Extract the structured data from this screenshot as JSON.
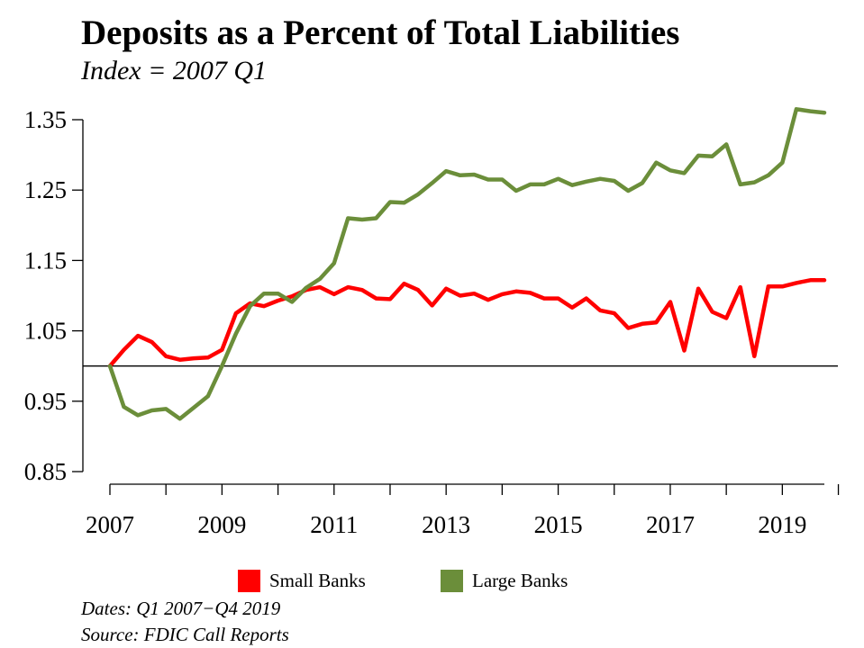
{
  "header": {
    "title": "Deposits as a Percent of Total Liabilities",
    "subtitle": "Index = 2007 Q1"
  },
  "footer": {
    "dates_note": "Dates: Q1 2007−Q4 2019",
    "source_note": "Source: FDIC Call Reports"
  },
  "colors": {
    "small_banks": "#ff0000",
    "large_banks": "#6b8e3a",
    "reference_line": "#000000"
  },
  "chart_data": {
    "type": "line",
    "title": "Deposits as a Percent of Total Liabilities",
    "subtitle": "Index = 2007 Q1",
    "xlabel": "",
    "ylabel": "",
    "x_ticks": [
      "2007",
      "2009",
      "2011",
      "2013",
      "2015",
      "2017",
      "2019"
    ],
    "y_ticks": [
      "0.85",
      "0.95",
      "1.05",
      "1.15",
      "1.25",
      "1.35"
    ],
    "ylim": [
      0.85,
      1.35
    ],
    "xlim": [
      "2007 Q1",
      "2019 Q4"
    ],
    "reference_line": 1.0,
    "grid": false,
    "legend_position": "bottom",
    "x": [
      "2007 Q1",
      "2007 Q2",
      "2007 Q3",
      "2007 Q4",
      "2008 Q1",
      "2008 Q2",
      "2008 Q3",
      "2008 Q4",
      "2009 Q1",
      "2009 Q2",
      "2009 Q3",
      "2009 Q4",
      "2010 Q1",
      "2010 Q2",
      "2010 Q3",
      "2010 Q4",
      "2011 Q1",
      "2011 Q2",
      "2011 Q3",
      "2011 Q4",
      "2012 Q1",
      "2012 Q2",
      "2012 Q3",
      "2012 Q4",
      "2013 Q1",
      "2013 Q2",
      "2013 Q3",
      "2013 Q4",
      "2014 Q1",
      "2014 Q2",
      "2014 Q3",
      "2014 Q4",
      "2015 Q1",
      "2015 Q2",
      "2015 Q3",
      "2015 Q4",
      "2016 Q1",
      "2016 Q2",
      "2016 Q3",
      "2016 Q4",
      "2017 Q1",
      "2017 Q2",
      "2017 Q3",
      "2017 Q4",
      "2018 Q1",
      "2018 Q2",
      "2018 Q3",
      "2018 Q4",
      "2019 Q1",
      "2019 Q2",
      "2019 Q3",
      "2019 Q4"
    ],
    "series": [
      {
        "name": "Small Banks",
        "color": "#ff0000",
        "values": [
          1.0,
          1.023,
          1.043,
          1.034,
          1.014,
          1.009,
          1.011,
          1.012,
          1.023,
          1.075,
          1.089,
          1.085,
          1.093,
          1.099,
          1.108,
          1.112,
          1.102,
          1.112,
          1.108,
          1.096,
          1.095,
          1.117,
          1.108,
          1.086,
          1.11,
          1.1,
          1.103,
          1.094,
          1.102,
          1.106,
          1.104,
          1.096,
          1.096,
          1.083,
          1.096,
          1.079,
          1.075,
          1.054,
          1.06,
          1.062,
          1.091,
          1.022,
          1.11,
          1.077,
          1.068,
          1.112,
          1.014,
          1.113,
          1.113,
          1.118,
          1.122,
          1.122
        ]
      },
      {
        "name": "Large Banks",
        "color": "#6b8e3a",
        "values": [
          1.0,
          0.942,
          0.93,
          0.937,
          0.939,
          0.925,
          0.941,
          0.957,
          1.0,
          1.046,
          1.085,
          1.103,
          1.103,
          1.091,
          1.111,
          1.124,
          1.146,
          1.21,
          1.208,
          1.21,
          1.233,
          1.232,
          1.244,
          1.26,
          1.277,
          1.271,
          1.272,
          1.265,
          1.265,
          1.249,
          1.258,
          1.258,
          1.266,
          1.257,
          1.262,
          1.266,
          1.263,
          1.249,
          1.26,
          1.289,
          1.278,
          1.274,
          1.299,
          1.298,
          1.315,
          1.258,
          1.261,
          1.271,
          1.289,
          1.365,
          1.362,
          1.36
        ]
      }
    ]
  }
}
